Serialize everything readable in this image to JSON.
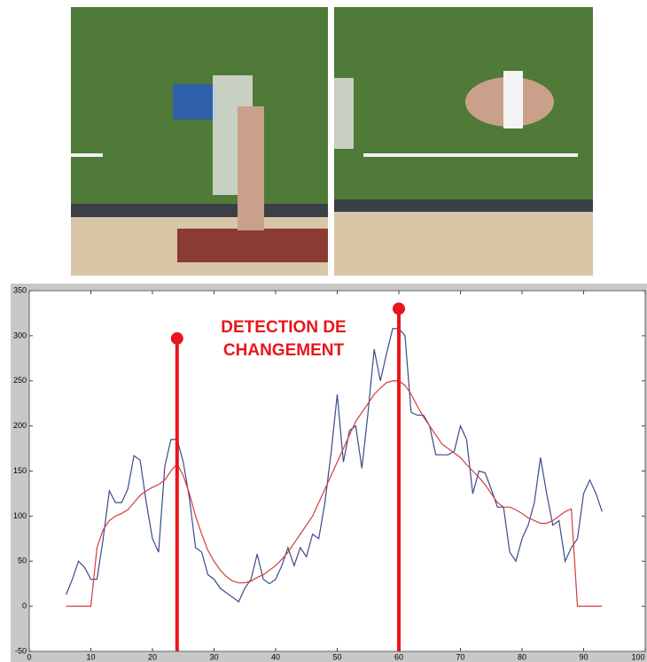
{
  "chart_data": {
    "type": "line",
    "x": [
      6,
      7,
      8,
      9,
      10,
      11,
      12,
      13,
      14,
      15,
      16,
      17,
      18,
      19,
      20,
      21,
      22,
      23,
      24,
      25,
      26,
      27,
      28,
      29,
      30,
      31,
      32,
      33,
      34,
      35,
      36,
      37,
      38,
      39,
      40,
      41,
      42,
      43,
      44,
      45,
      46,
      47,
      48,
      49,
      50,
      51,
      52,
      53,
      54,
      55,
      56,
      57,
      58,
      59,
      60,
      61,
      62,
      63,
      64,
      65,
      66,
      67,
      68,
      69,
      70,
      71,
      72,
      73,
      74,
      75,
      76,
      77,
      78,
      79,
      80,
      81,
      82,
      83,
      84,
      85,
      86,
      87,
      88,
      89,
      90,
      91,
      92,
      93
    ],
    "series": [
      {
        "color": "#3a4a8c",
        "values": [
          13,
          30,
          50,
          43,
          30,
          30,
          75,
          128,
          115,
          115,
          130,
          167,
          162,
          115,
          75,
          60,
          155,
          185,
          185,
          160,
          120,
          65,
          60,
          35,
          30,
          20,
          15,
          10,
          5,
          20,
          30,
          58,
          30,
          25,
          30,
          45,
          65,
          45,
          65,
          55,
          80,
          75,
          115,
          170,
          235,
          160,
          195,
          200,
          153,
          215,
          285,
          250,
          280,
          308,
          308,
          300,
          215,
          212,
          212,
          200,
          168,
          168,
          168,
          172,
          200,
          185,
          125,
          150,
          148,
          130,
          110,
          110,
          60,
          50,
          75,
          90,
          115,
          165,
          125,
          90,
          95,
          50,
          65,
          75,
          125,
          140,
          125,
          105
        ]
      },
      {
        "color": "#d23c3c",
        "values": [
          0,
          0,
          0,
          0,
          0,
          65,
          85,
          95,
          100,
          103,
          107,
          115,
          123,
          128,
          132,
          135,
          140,
          150,
          158,
          145,
          125,
          100,
          80,
          62,
          50,
          40,
          33,
          28,
          26,
          26,
          28,
          32,
          35,
          40,
          45,
          52,
          60,
          70,
          80,
          90,
          100,
          115,
          130,
          145,
          160,
          175,
          190,
          205,
          215,
          225,
          235,
          242,
          248,
          250,
          250,
          245,
          235,
          222,
          210,
          200,
          190,
          180,
          175,
          170,
          165,
          157,
          150,
          143,
          135,
          125,
          115,
          110,
          110,
          107,
          103,
          98,
          95,
          92,
          92,
          95,
          100,
          105,
          108,
          0,
          0,
          0,
          0,
          0
        ]
      }
    ],
    "markers": [
      {
        "x": 24,
        "y": 297
      },
      {
        "x": 60,
        "y": 330
      }
    ],
    "marker_color": "#e8161b",
    "annotation": [
      "DETECTION DE",
      "CHANGEMENT"
    ],
    "xlim": [
      0,
      100
    ],
    "xticks": [
      0,
      10,
      20,
      30,
      40,
      50,
      60,
      70,
      80,
      90,
      100
    ],
    "ylim": [
      -50,
      350
    ],
    "yticks": [
      -50,
      0,
      50,
      100,
      150,
      200,
      250,
      300,
      350
    ]
  }
}
